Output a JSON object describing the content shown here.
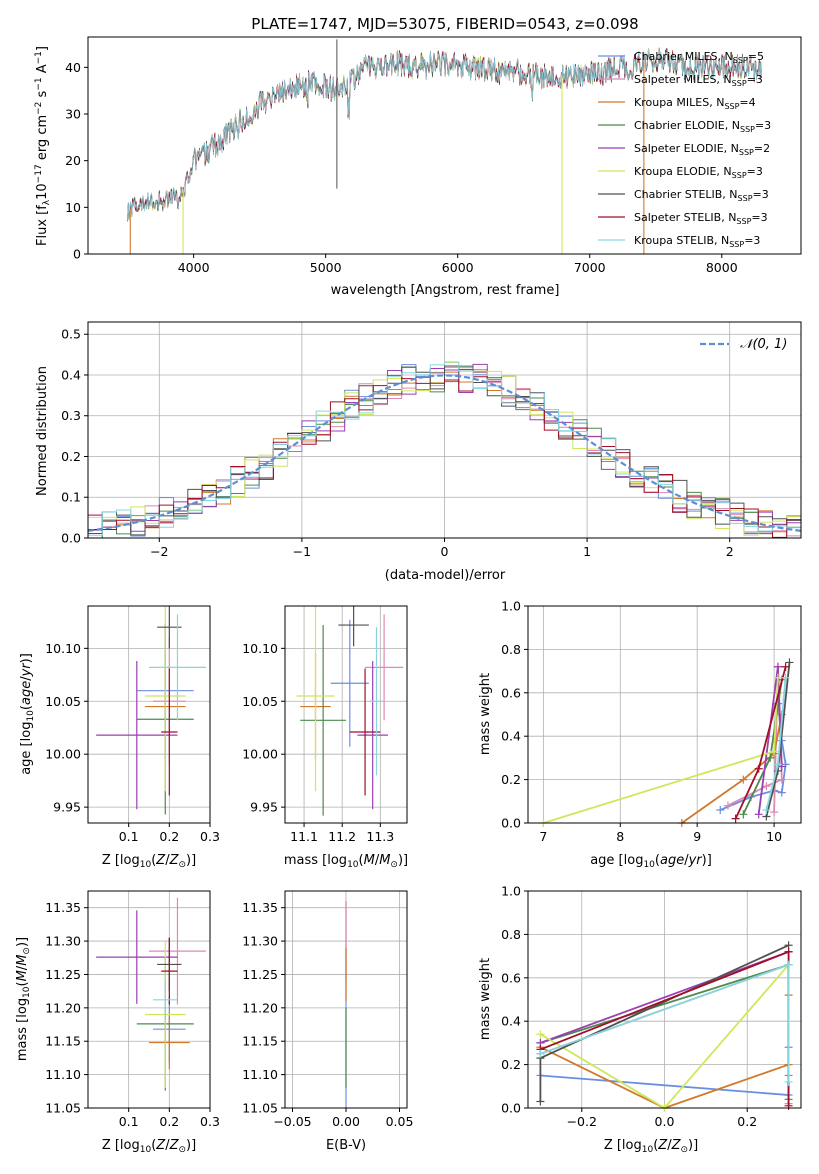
{
  "figure_title": "PLATE=1747, MJD=53075, FIBERID=0543, z=0.098",
  "legend": {
    "spectrum_entries": [
      {
        "model": "Chabrier MILES, N",
        "sub": "SSP",
        "n": "=5",
        "color": "#6a8fe0"
      },
      {
        "model": "Salpeter MILES, N",
        "sub": "SSP",
        "n": "=3",
        "color": "#e089b0"
      },
      {
        "model": "Kroupa MILES, N",
        "sub": "SSP",
        "n": "=4",
        "color": "#d2782b"
      },
      {
        "model": "Chabrier ELODIE, N",
        "sub": "SSP",
        "n": "=3",
        "color": "#4c8a4c"
      },
      {
        "model": "Salpeter ELODIE, N",
        "sub": "SSP",
        "n": "=2",
        "color": "#9b3fb3"
      },
      {
        "model": "Kroupa ELODIE, N",
        "sub": "SSP",
        "n": "=3",
        "color": "#cde85a"
      },
      {
        "model": "Chabrier STELIB, N",
        "sub": "SSP",
        "n": "=3",
        "color": "#505050"
      },
      {
        "model": "Salpeter STELIB, N",
        "sub": "SSP",
        "n": "=3",
        "color": "#a0102a"
      },
      {
        "model": "Kroupa STELIB, N",
        "sub": "SSP",
        "n": "=3",
        "color": "#86d6e0"
      }
    ],
    "normal_label": "𝒩(0, 1)"
  },
  "chart_data": [
    {
      "type": "line",
      "panel": "spectrum",
      "xlabel": "wavelength [Angstrom, rest frame]",
      "ylabel_main": "Flux [f",
      "ylabel_lambda": "λ",
      "ylabel_rest": "10",
      "ylabel_exp": "−17",
      "ylabel_tail": " erg cm",
      "xlim": [
        3200,
        8600
      ],
      "ylim": [
        0,
        46.5
      ],
      "xticks": [
        4000,
        5000,
        6000,
        7000,
        8000
      ],
      "yticks": [
        0,
        10,
        20,
        30,
        40
      ],
      "continuum": {
        "x": [
          3500,
          3700,
          3900,
          4000,
          4150,
          4300,
          4500,
          4700,
          4900,
          5100,
          5300,
          5500,
          5700,
          5900,
          6100,
          6300,
          6500,
          6700,
          6900,
          7100,
          7300,
          7500,
          7700,
          7900,
          8100,
          8300
        ],
        "y": [
          9.5,
          11,
          12,
          20,
          23,
          27,
          32,
          35,
          37,
          35,
          40,
          41,
          40,
          41,
          40,
          39,
          39,
          38,
          38.5,
          39,
          40,
          42,
          40,
          40,
          40.5,
          39
        ]
      },
      "gap_drops": [
        3520,
        3920,
        6790,
        7410
      ]
    },
    {
      "type": "line",
      "panel": "residual_histogram",
      "xlabel": "(data-model)/error",
      "ylabel": "Normed distribution",
      "xlim": [
        -2.5,
        2.5
      ],
      "ylim": [
        0,
        0.53
      ],
      "xticks": [
        -2,
        -1,
        0,
        1,
        2
      ],
      "yticks": [
        0.0,
        0.1,
        0.2,
        0.3,
        0.4,
        0.5
      ],
      "bin_width": 0.1
    },
    {
      "type": "scatter",
      "panel": "age_vs_Z",
      "xlabel": "Z [log",
      "ylabel": "age  [log",
      "xlim": [
        0.0,
        0.3
      ],
      "ylim": [
        9.935,
        10.14
      ],
      "xticks": [
        0.1,
        0.2,
        0.3
      ],
      "yticks": [
        9.95,
        10.0,
        10.05,
        10.1
      ],
      "points": [
        {
          "x": 0.19,
          "y": 10.06,
          "xerr": 0.07,
          "yerr": 0.06
        },
        {
          "x": 0.2,
          "y": 10.05,
          "xerr": 0.04,
          "yerr": 0.06
        },
        {
          "x": 0.19,
          "y": 10.045,
          "xerr": 0.05,
          "yerr": 0.05
        },
        {
          "x": 0.19,
          "y": 10.033,
          "xerr": 0.07,
          "yerr": 0.09
        },
        {
          "x": 0.12,
          "y": 10.018,
          "xerr": 0.1,
          "yerr": 0.07
        },
        {
          "x": 0.19,
          "y": 10.055,
          "xerr": 0.05,
          "yerr": 0.09
        },
        {
          "x": 0.2,
          "y": 10.12,
          "xerr": 0.03,
          "yerr": 0.02
        },
        {
          "x": 0.2,
          "y": 10.021,
          "xerr": 0.02,
          "yerr": 0.06
        },
        {
          "x": 0.22,
          "y": 10.082,
          "xerr": 0.07,
          "yerr": 0.05
        }
      ]
    },
    {
      "type": "scatter",
      "panel": "age_vs_mass",
      "xlabel": "mass [log",
      "ylabel": "",
      "xlim": [
        11.05,
        11.37
      ],
      "ylim": [
        9.935,
        10.14
      ],
      "xticks": [
        11.1,
        11.2,
        11.3
      ],
      "yticks": [
        9.95,
        10.0,
        10.05,
        10.1
      ],
      "points": [
        {
          "x": 11.22,
          "y": 10.067,
          "xerr": 0.05,
          "yerr": 0.06
        },
        {
          "x": 11.31,
          "y": 10.082,
          "xerr": 0.05,
          "yerr": 0.05
        },
        {
          "x": 11.13,
          "y": 10.045,
          "xerr": 0.04,
          "yerr": 0.05
        },
        {
          "x": 11.15,
          "y": 10.032,
          "xerr": 0.06,
          "yerr": 0.09
        },
        {
          "x": 11.28,
          "y": 10.018,
          "xerr": 0.04,
          "yerr": 0.07
        },
        {
          "x": 11.13,
          "y": 10.055,
          "xerr": 0.05,
          "yerr": 0.09
        },
        {
          "x": 11.23,
          "y": 10.122,
          "xerr": 0.04,
          "yerr": 0.02
        },
        {
          "x": 11.26,
          "y": 10.021,
          "xerr": 0.04,
          "yerr": 0.06
        },
        {
          "x": 11.29,
          "y": 10.05,
          "xerr": 0.02,
          "yerr": 0.07
        }
      ]
    },
    {
      "type": "line",
      "panel": "mass_weight_vs_age",
      "xlabel": "age  [log",
      "ylabel": "mass weight",
      "xlim": [
        6.8,
        10.35
      ],
      "ylim": [
        0,
        1.0
      ],
      "xticks": [
        7,
        8,
        9,
        10
      ],
      "yticks": [
        0.0,
        0.2,
        0.4,
        0.6,
        0.8,
        1.0
      ]
    },
    {
      "type": "scatter",
      "panel": "mass_vs_Z",
      "xlabel": "Z [log",
      "ylabel": "mass [log",
      "xlim": [
        0.0,
        0.3
      ],
      "ylim": [
        11.05,
        11.375
      ],
      "xticks": [
        0.1,
        0.2,
        0.3
      ],
      "yticks": [
        11.05,
        11.1,
        11.15,
        11.2,
        11.25,
        11.3,
        11.35
      ],
      "points": [
        {
          "x": 0.2,
          "y": 11.168,
          "xerr": 0.04,
          "yerr": 0.05
        },
        {
          "x": 0.22,
          "y": 11.285,
          "xerr": 0.07,
          "yerr": 0.08
        },
        {
          "x": 0.2,
          "y": 11.148,
          "xerr": 0.05,
          "yerr": 0.04
        },
        {
          "x": 0.19,
          "y": 11.176,
          "xerr": 0.07,
          "yerr": 0.1
        },
        {
          "x": 0.12,
          "y": 11.276,
          "xerr": 0.1,
          "yerr": 0.07
        },
        {
          "x": 0.19,
          "y": 11.19,
          "xerr": 0.05,
          "yerr": 0.11
        },
        {
          "x": 0.2,
          "y": 11.265,
          "xerr": 0.03,
          "yerr": 0.04
        },
        {
          "x": 0.2,
          "y": 11.255,
          "xerr": 0.02,
          "yerr": 0.05
        },
        {
          "x": 0.19,
          "y": 11.212,
          "xerr": 0.03,
          "yerr": 0.03
        }
      ]
    },
    {
      "type": "scatter",
      "panel": "mass_vs_ebv",
      "xlabel": "E(B-V)",
      "ylabel": "",
      "xlim": [
        -0.057,
        0.057
      ],
      "ylim": [
        11.05,
        11.375
      ],
      "xticks": [
        -0.05,
        0.0,
        0.05
      ],
      "yticks": [
        11.05,
        11.1,
        11.15,
        11.2,
        11.25,
        11.3,
        11.35
      ],
      "points": [
        {
          "x": 0,
          "y": 11.17,
          "xerr": 0,
          "yerr": 0.19
        },
        {
          "x": 0,
          "y": 11.3,
          "xerr": 0,
          "yerr": 0.06
        },
        {
          "x": 0,
          "y": 11.25,
          "xerr": 0,
          "yerr": 0.04
        },
        {
          "x": 0,
          "y": 11.14,
          "xerr": 0,
          "yerr": 0.06
        }
      ]
    },
    {
      "type": "line",
      "panel": "mass_weight_vs_Z",
      "xlabel": "Z [log",
      "ylabel": "mass weight",
      "xlim": [
        -0.33,
        0.33
      ],
      "ylim": [
        0,
        1.0
      ],
      "xticks": [
        -0.2,
        0.0,
        0.2
      ],
      "yticks": [
        0.0,
        0.2,
        0.4,
        0.6,
        0.8,
        1.0
      ]
    }
  ]
}
